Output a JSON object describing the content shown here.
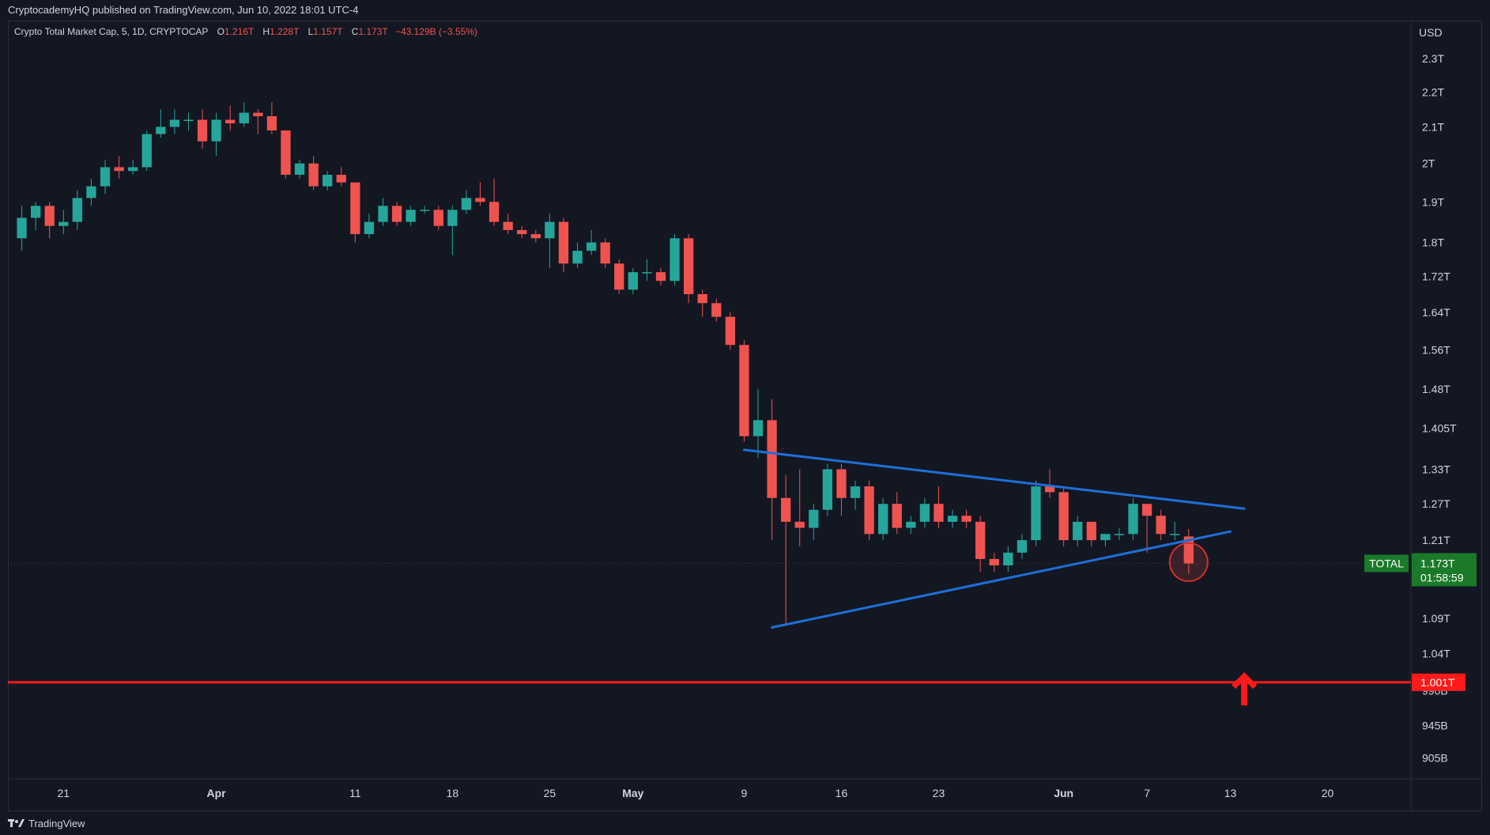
{
  "header": {
    "published": "CryptocademyHQ published on TradingView.com, Jun 10, 2022 18:01 UTC-4"
  },
  "legend": {
    "symbol": "Crypto Total Market Cap, 5, 1D, CRYPTOCAP",
    "open_label": "O",
    "open": "1.216T",
    "high_label": "H",
    "high": "1.228T",
    "low_label": "L",
    "low": "1.157T",
    "close_label": "C",
    "close": "1.173T",
    "change": "−43.129B (−3.55%)"
  },
  "currency": "USD",
  "footer": {
    "brand": "TradingView"
  },
  "colors": {
    "background": "#131722",
    "up": "#26a69a",
    "down": "#ef5350",
    "trendline": "#1e6fd9",
    "support": "#ff1a1a",
    "price_tag": "#1b7a2a"
  },
  "chart_data": {
    "type": "candlestick",
    "y_axis": {
      "scale": "log",
      "range": [
        0.88,
        2.42
      ],
      "ticks": [
        {
          "value": 2.3,
          "label": "2.3T"
        },
        {
          "value": 2.2,
          "label": "2.2T"
        },
        {
          "value": 2.1,
          "label": "2.1T"
        },
        {
          "value": 2.0,
          "label": "2T"
        },
        {
          "value": 1.9,
          "label": "1.9T"
        },
        {
          "value": 1.8,
          "label": "1.8T"
        },
        {
          "value": 1.72,
          "label": "1.72T"
        },
        {
          "value": 1.64,
          "label": "1.64T"
        },
        {
          "value": 1.56,
          "label": "1.56T"
        },
        {
          "value": 1.48,
          "label": "1.48T"
        },
        {
          "value": 1.405,
          "label": "1.405T"
        },
        {
          "value": 1.33,
          "label": "1.33T"
        },
        {
          "value": 1.27,
          "label": "1.27T"
        },
        {
          "value": 1.21,
          "label": "1.21T"
        },
        {
          "value": 1.09,
          "label": "1.09T"
        },
        {
          "value": 1.04,
          "label": "1.04T"
        },
        {
          "value": 0.99,
          "label": "990B"
        },
        {
          "value": 0.945,
          "label": "945B"
        },
        {
          "value": 0.905,
          "label": "905B"
        }
      ]
    },
    "x_axis": {
      "ticks": [
        {
          "date": "2022-03-21",
          "label": "21"
        },
        {
          "date": "2022-04-01",
          "label": "Apr"
        },
        {
          "date": "2022-04-11",
          "label": "11"
        },
        {
          "date": "2022-04-18",
          "label": "18"
        },
        {
          "date": "2022-04-25",
          "label": "25"
        },
        {
          "date": "2022-05-01",
          "label": "May"
        },
        {
          "date": "2022-05-09",
          "label": "9"
        },
        {
          "date": "2022-05-16",
          "label": "16"
        },
        {
          "date": "2022-05-23",
          "label": "23"
        },
        {
          "date": "2022-06-01",
          "label": "Jun"
        },
        {
          "date": "2022-06-07",
          "label": "7"
        },
        {
          "date": "2022-06-13",
          "label": "13"
        },
        {
          "date": "2022-06-20",
          "label": "20"
        }
      ],
      "range": [
        "2022-03-17",
        "2022-06-26"
      ]
    },
    "candles": [
      {
        "date": "2022-03-18",
        "o": 1.81,
        "h": 1.89,
        "l": 1.78,
        "c": 1.86
      },
      {
        "date": "2022-03-19",
        "o": 1.86,
        "h": 1.9,
        "l": 1.83,
        "c": 1.89
      },
      {
        "date": "2022-03-20",
        "o": 1.89,
        "h": 1.9,
        "l": 1.81,
        "c": 1.84
      },
      {
        "date": "2022-03-21",
        "o": 1.84,
        "h": 1.88,
        "l": 1.82,
        "c": 1.85
      },
      {
        "date": "2022-03-22",
        "o": 1.85,
        "h": 1.93,
        "l": 1.83,
        "c": 1.91
      },
      {
        "date": "2022-03-23",
        "o": 1.91,
        "h": 1.96,
        "l": 1.89,
        "c": 1.94
      },
      {
        "date": "2022-03-24",
        "o": 1.94,
        "h": 2.01,
        "l": 1.92,
        "c": 1.99
      },
      {
        "date": "2022-03-25",
        "o": 1.99,
        "h": 2.02,
        "l": 1.96,
        "c": 1.98
      },
      {
        "date": "2022-03-26",
        "o": 1.98,
        "h": 2.01,
        "l": 1.97,
        "c": 1.99
      },
      {
        "date": "2022-03-27",
        "o": 1.99,
        "h": 2.09,
        "l": 1.98,
        "c": 2.08
      },
      {
        "date": "2022-03-28",
        "o": 2.08,
        "h": 2.15,
        "l": 2.07,
        "c": 2.1
      },
      {
        "date": "2022-03-29",
        "o": 2.1,
        "h": 2.15,
        "l": 2.08,
        "c": 2.12
      },
      {
        "date": "2022-03-30",
        "o": 2.12,
        "h": 2.14,
        "l": 2.09,
        "c": 2.12
      },
      {
        "date": "2022-03-31",
        "o": 2.12,
        "h": 2.15,
        "l": 2.04,
        "c": 2.06
      },
      {
        "date": "2022-04-01",
        "o": 2.06,
        "h": 2.14,
        "l": 2.02,
        "c": 2.12
      },
      {
        "date": "2022-04-02",
        "o": 2.12,
        "h": 2.16,
        "l": 2.09,
        "c": 2.11
      },
      {
        "date": "2022-04-03",
        "o": 2.11,
        "h": 2.17,
        "l": 2.1,
        "c": 2.14
      },
      {
        "date": "2022-04-04",
        "o": 2.14,
        "h": 2.15,
        "l": 2.08,
        "c": 2.13
      },
      {
        "date": "2022-04-05",
        "o": 2.13,
        "h": 2.17,
        "l": 2.08,
        "c": 2.09
      },
      {
        "date": "2022-04-06",
        "o": 2.09,
        "h": 2.09,
        "l": 1.96,
        "c": 1.97
      },
      {
        "date": "2022-04-07",
        "o": 1.97,
        "h": 2.01,
        "l": 1.96,
        "c": 2.0
      },
      {
        "date": "2022-04-08",
        "o": 2.0,
        "h": 2.02,
        "l": 1.93,
        "c": 1.94
      },
      {
        "date": "2022-04-09",
        "o": 1.94,
        "h": 1.98,
        "l": 1.93,
        "c": 1.97
      },
      {
        "date": "2022-04-10",
        "o": 1.97,
        "h": 1.99,
        "l": 1.94,
        "c": 1.95
      },
      {
        "date": "2022-04-11",
        "o": 1.95,
        "h": 1.95,
        "l": 1.8,
        "c": 1.82
      },
      {
        "date": "2022-04-12",
        "o": 1.82,
        "h": 1.87,
        "l": 1.81,
        "c": 1.85
      },
      {
        "date": "2022-04-13",
        "o": 1.85,
        "h": 1.91,
        "l": 1.84,
        "c": 1.89
      },
      {
        "date": "2022-04-14",
        "o": 1.89,
        "h": 1.9,
        "l": 1.84,
        "c": 1.85
      },
      {
        "date": "2022-04-15",
        "o": 1.85,
        "h": 1.89,
        "l": 1.84,
        "c": 1.88
      },
      {
        "date": "2022-04-16",
        "o": 1.88,
        "h": 1.89,
        "l": 1.87,
        "c": 1.88
      },
      {
        "date": "2022-04-17",
        "o": 1.88,
        "h": 1.89,
        "l": 1.83,
        "c": 1.84
      },
      {
        "date": "2022-04-18",
        "o": 1.84,
        "h": 1.89,
        "l": 1.77,
        "c": 1.88
      },
      {
        "date": "2022-04-19",
        "o": 1.88,
        "h": 1.93,
        "l": 1.87,
        "c": 1.91
      },
      {
        "date": "2022-04-20",
        "o": 1.91,
        "h": 1.95,
        "l": 1.89,
        "c": 1.9
      },
      {
        "date": "2022-04-21",
        "o": 1.9,
        "h": 1.96,
        "l": 1.84,
        "c": 1.85
      },
      {
        "date": "2022-04-22",
        "o": 1.85,
        "h": 1.87,
        "l": 1.82,
        "c": 1.83
      },
      {
        "date": "2022-04-23",
        "o": 1.83,
        "h": 1.84,
        "l": 1.81,
        "c": 1.82
      },
      {
        "date": "2022-04-24",
        "o": 1.82,
        "h": 1.83,
        "l": 1.8,
        "c": 1.81
      },
      {
        "date": "2022-04-25",
        "o": 1.81,
        "h": 1.87,
        "l": 1.74,
        "c": 1.85
      },
      {
        "date": "2022-04-26",
        "o": 1.85,
        "h": 1.86,
        "l": 1.73,
        "c": 1.75
      },
      {
        "date": "2022-04-27",
        "o": 1.75,
        "h": 1.8,
        "l": 1.74,
        "c": 1.78
      },
      {
        "date": "2022-04-28",
        "o": 1.78,
        "h": 1.83,
        "l": 1.77,
        "c": 1.8
      },
      {
        "date": "2022-04-29",
        "o": 1.8,
        "h": 1.81,
        "l": 1.74,
        "c": 1.75
      },
      {
        "date": "2022-04-30",
        "o": 1.75,
        "h": 1.76,
        "l": 1.68,
        "c": 1.69
      },
      {
        "date": "2022-05-01",
        "o": 1.69,
        "h": 1.74,
        "l": 1.68,
        "c": 1.73
      },
      {
        "date": "2022-05-02",
        "o": 1.73,
        "h": 1.76,
        "l": 1.71,
        "c": 1.73
      },
      {
        "date": "2022-05-03",
        "o": 1.73,
        "h": 1.74,
        "l": 1.7,
        "c": 1.71
      },
      {
        "date": "2022-05-04",
        "o": 1.71,
        "h": 1.82,
        "l": 1.7,
        "c": 1.81
      },
      {
        "date": "2022-05-05",
        "o": 1.81,
        "h": 1.82,
        "l": 1.66,
        "c": 1.68
      },
      {
        "date": "2022-05-06",
        "o": 1.68,
        "h": 1.69,
        "l": 1.63,
        "c": 1.66
      },
      {
        "date": "2022-05-07",
        "o": 1.66,
        "h": 1.67,
        "l": 1.62,
        "c": 1.63
      },
      {
        "date": "2022-05-08",
        "o": 1.63,
        "h": 1.64,
        "l": 1.56,
        "c": 1.57
      },
      {
        "date": "2022-05-09",
        "o": 1.57,
        "h": 1.58,
        "l": 1.38,
        "c": 1.39
      },
      {
        "date": "2022-05-10",
        "o": 1.39,
        "h": 1.48,
        "l": 1.35,
        "c": 1.42
      },
      {
        "date": "2022-05-11",
        "o": 1.42,
        "h": 1.46,
        "l": 1.21,
        "c": 1.28
      },
      {
        "date": "2022-05-12",
        "o": 1.28,
        "h": 1.32,
        "l": 1.08,
        "c": 1.24
      },
      {
        "date": "2022-05-13",
        "o": 1.24,
        "h": 1.33,
        "l": 1.2,
        "c": 1.23
      },
      {
        "date": "2022-05-14",
        "o": 1.23,
        "h": 1.27,
        "l": 1.21,
        "c": 1.26
      },
      {
        "date": "2022-05-15",
        "o": 1.26,
        "h": 1.34,
        "l": 1.25,
        "c": 1.33
      },
      {
        "date": "2022-05-16",
        "o": 1.33,
        "h": 1.34,
        "l": 1.25,
        "c": 1.28
      },
      {
        "date": "2022-05-17",
        "o": 1.28,
        "h": 1.31,
        "l": 1.26,
        "c": 1.3
      },
      {
        "date": "2022-05-18",
        "o": 1.3,
        "h": 1.31,
        "l": 1.21,
        "c": 1.22
      },
      {
        "date": "2022-05-19",
        "o": 1.22,
        "h": 1.28,
        "l": 1.21,
        "c": 1.27
      },
      {
        "date": "2022-05-20",
        "o": 1.27,
        "h": 1.29,
        "l": 1.22,
        "c": 1.23
      },
      {
        "date": "2022-05-21",
        "o": 1.23,
        "h": 1.25,
        "l": 1.22,
        "c": 1.24
      },
      {
        "date": "2022-05-22",
        "o": 1.24,
        "h": 1.28,
        "l": 1.23,
        "c": 1.27
      },
      {
        "date": "2022-05-23",
        "o": 1.27,
        "h": 1.3,
        "l": 1.23,
        "c": 1.24
      },
      {
        "date": "2022-05-24",
        "o": 1.24,
        "h": 1.26,
        "l": 1.23,
        "c": 1.25
      },
      {
        "date": "2022-05-25",
        "o": 1.25,
        "h": 1.26,
        "l": 1.23,
        "c": 1.24
      },
      {
        "date": "2022-05-26",
        "o": 1.24,
        "h": 1.25,
        "l": 1.16,
        "c": 1.18
      },
      {
        "date": "2022-05-27",
        "o": 1.18,
        "h": 1.19,
        "l": 1.16,
        "c": 1.17
      },
      {
        "date": "2022-05-28",
        "o": 1.17,
        "h": 1.2,
        "l": 1.16,
        "c": 1.19
      },
      {
        "date": "2022-05-29",
        "o": 1.19,
        "h": 1.22,
        "l": 1.18,
        "c": 1.21
      },
      {
        "date": "2022-05-30",
        "o": 1.21,
        "h": 1.31,
        "l": 1.2,
        "c": 1.3
      },
      {
        "date": "2022-05-31",
        "o": 1.3,
        "h": 1.33,
        "l": 1.28,
        "c": 1.29
      },
      {
        "date": "2022-06-01",
        "o": 1.29,
        "h": 1.3,
        "l": 1.2,
        "c": 1.21
      },
      {
        "date": "2022-06-02",
        "o": 1.21,
        "h": 1.25,
        "l": 1.2,
        "c": 1.24
      },
      {
        "date": "2022-06-03",
        "o": 1.24,
        "h": 1.24,
        "l": 1.2,
        "c": 1.21
      },
      {
        "date": "2022-06-04",
        "o": 1.21,
        "h": 1.22,
        "l": 1.2,
        "c": 1.22
      },
      {
        "date": "2022-06-05",
        "o": 1.22,
        "h": 1.23,
        "l": 1.21,
        "c": 1.22
      },
      {
        "date": "2022-06-06",
        "o": 1.22,
        "h": 1.28,
        "l": 1.21,
        "c": 1.27
      },
      {
        "date": "2022-06-07",
        "o": 1.27,
        "h": 1.27,
        "l": 1.19,
        "c": 1.25
      },
      {
        "date": "2022-06-08",
        "o": 1.25,
        "h": 1.26,
        "l": 1.21,
        "c": 1.22
      },
      {
        "date": "2022-06-09",
        "o": 1.22,
        "h": 1.24,
        "l": 1.21,
        "c": 1.22
      },
      {
        "date": "2022-06-10",
        "o": 1.216,
        "h": 1.228,
        "l": 1.157,
        "c": 1.173
      }
    ],
    "trendlines": [
      {
        "name": "upper",
        "from": {
          "date": "2022-05-09",
          "value": 1.365
        },
        "to": {
          "date": "2022-06-14",
          "value": 1.262
        }
      },
      {
        "name": "lower",
        "from": {
          "date": "2022-05-11",
          "value": 1.077
        },
        "to": {
          "date": "2022-06-13",
          "value": 1.224
        }
      }
    ],
    "support_line": {
      "value": 1.001,
      "label": "1.001T"
    },
    "current_price": {
      "value": 1.173,
      "label": "TOTAL",
      "price": "1.173T",
      "countdown": "01:58:59"
    },
    "highlight_circle": {
      "date": "2022-06-10",
      "value": 1.175
    },
    "arrow": {
      "date": "2022-06-14",
      "value": 0.985,
      "direction": "up"
    }
  }
}
